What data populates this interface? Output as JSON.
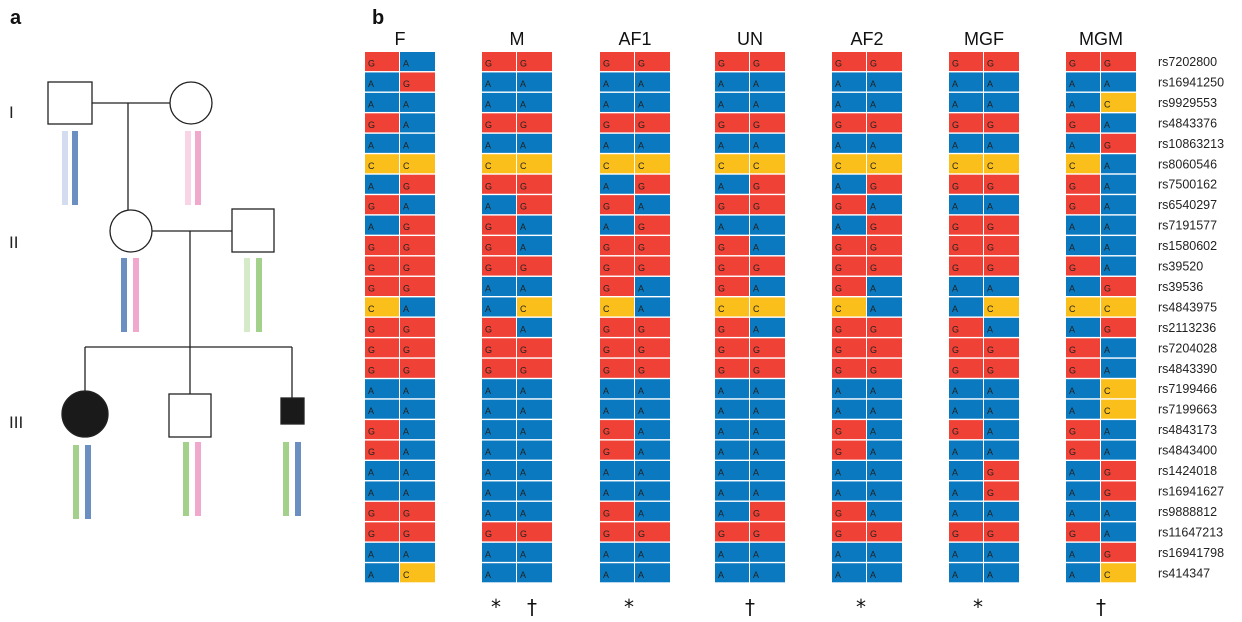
{
  "panel_a": {
    "label": "a",
    "generations": [
      "I",
      "II",
      "III"
    ],
    "haplotype_colors": {
      "blue": "#6a8fc0",
      "light_blue": "#d3ddef",
      "pink": "#f0a8cc",
      "light_pink": "#f9d3e6",
      "green": "#a3d08a",
      "light_green": "#d5eac8"
    }
  },
  "panel_b": {
    "label": "b",
    "individuals": [
      "F",
      "M",
      "AF1",
      "UN",
      "AF2",
      "MGF",
      "MGM"
    ],
    "snps": [
      "rs7202800",
      "rs16941250",
      "rs9929553",
      "rs4843376",
      "rs10863213",
      "rs8060546",
      "rs7500162",
      "rs6540297",
      "rs7191577",
      "rs1580602",
      "rs39520",
      "rs39536",
      "rs4843975",
      "rs2113236",
      "rs7204028",
      "rs4843390",
      "rs7199466",
      "rs7199663",
      "rs4843173",
      "rs4843400",
      "rs1424018",
      "rs16941627",
      "rs9888812",
      "rs11647213",
      "rs16941798",
      "rs414347"
    ],
    "allele_colors": {
      "G": "#ef4136",
      "A": "#0a79bf",
      "C": "#fbbf1c"
    },
    "genotypes": {
      "F": [
        "GA",
        "AG",
        "AA",
        "GA",
        "AA",
        "CC",
        "AG",
        "GA",
        "AG",
        "GG",
        "GG",
        "GG",
        "CA",
        "GG",
        "GG",
        "GG",
        "AA",
        "AA",
        "GA",
        "GA",
        "AA",
        "AA",
        "GG",
        "GG",
        "AA",
        "AC"
      ],
      "M": [
        "GG",
        "AA",
        "AA",
        "GG",
        "AA",
        "CC",
        "GG",
        "AG",
        "GA",
        "GA",
        "GG",
        "AA",
        "AC",
        "GA",
        "GG",
        "GG",
        "AA",
        "AA",
        "AA",
        "AA",
        "AA",
        "AA",
        "AA",
        "GG",
        "AA",
        "AA"
      ],
      "AF1": [
        "GG",
        "AA",
        "AA",
        "GG",
        "AA",
        "CC",
        "AG",
        "GA",
        "AG",
        "GG",
        "GG",
        "GA",
        "CA",
        "GG",
        "GG",
        "GG",
        "AA",
        "AA",
        "GA",
        "GA",
        "AA",
        "AA",
        "GA",
        "GG",
        "AA",
        "AA"
      ],
      "UN": [
        "GG",
        "AA",
        "AA",
        "GG",
        "AA",
        "CC",
        "AG",
        "GG",
        "AA",
        "GA",
        "GG",
        "GA",
        "CC",
        "GA",
        "GG",
        "GG",
        "AA",
        "AA",
        "AA",
        "AA",
        "AA",
        "AA",
        "AG",
        "GG",
        "AA",
        "AA"
      ],
      "AF2": [
        "GG",
        "AA",
        "AA",
        "GG",
        "AA",
        "CC",
        "AG",
        "GA",
        "AG",
        "GG",
        "GG",
        "GA",
        "CA",
        "GG",
        "GG",
        "GG",
        "AA",
        "AA",
        "GA",
        "GA",
        "AA",
        "AA",
        "GA",
        "GG",
        "AA",
        "AA"
      ],
      "MGF": [
        "GG",
        "AA",
        "AA",
        "GG",
        "AA",
        "CC",
        "GG",
        "AA",
        "GG",
        "GG",
        "GG",
        "AA",
        "AC",
        "GA",
        "GG",
        "GG",
        "AA",
        "AA",
        "GA",
        "AA",
        "AG",
        "AG",
        "AA",
        "GG",
        "AA",
        "AA"
      ],
      "MGM": [
        "GG",
        "AA",
        "AC",
        "GA",
        "AG",
        "CA",
        "GA",
        "GA",
        "AA",
        "AA",
        "GA",
        "AG",
        "CC",
        "AG",
        "GA",
        "GA",
        "AC",
        "AC",
        "GA",
        "GA",
        "AG",
        "AG",
        "AA",
        "GA",
        "AG",
        "AC"
      ]
    },
    "marks": {
      "star": "*",
      "dagger": "†"
    },
    "marks_by_individual": {
      "F": [],
      "M": [
        "*",
        "†"
      ],
      "AF1": [
        "*"
      ],
      "UN": [
        "†"
      ],
      "AF2": [
        "*"
      ],
      "MGF": [
        "*"
      ],
      "MGM": [
        "†"
      ]
    }
  }
}
